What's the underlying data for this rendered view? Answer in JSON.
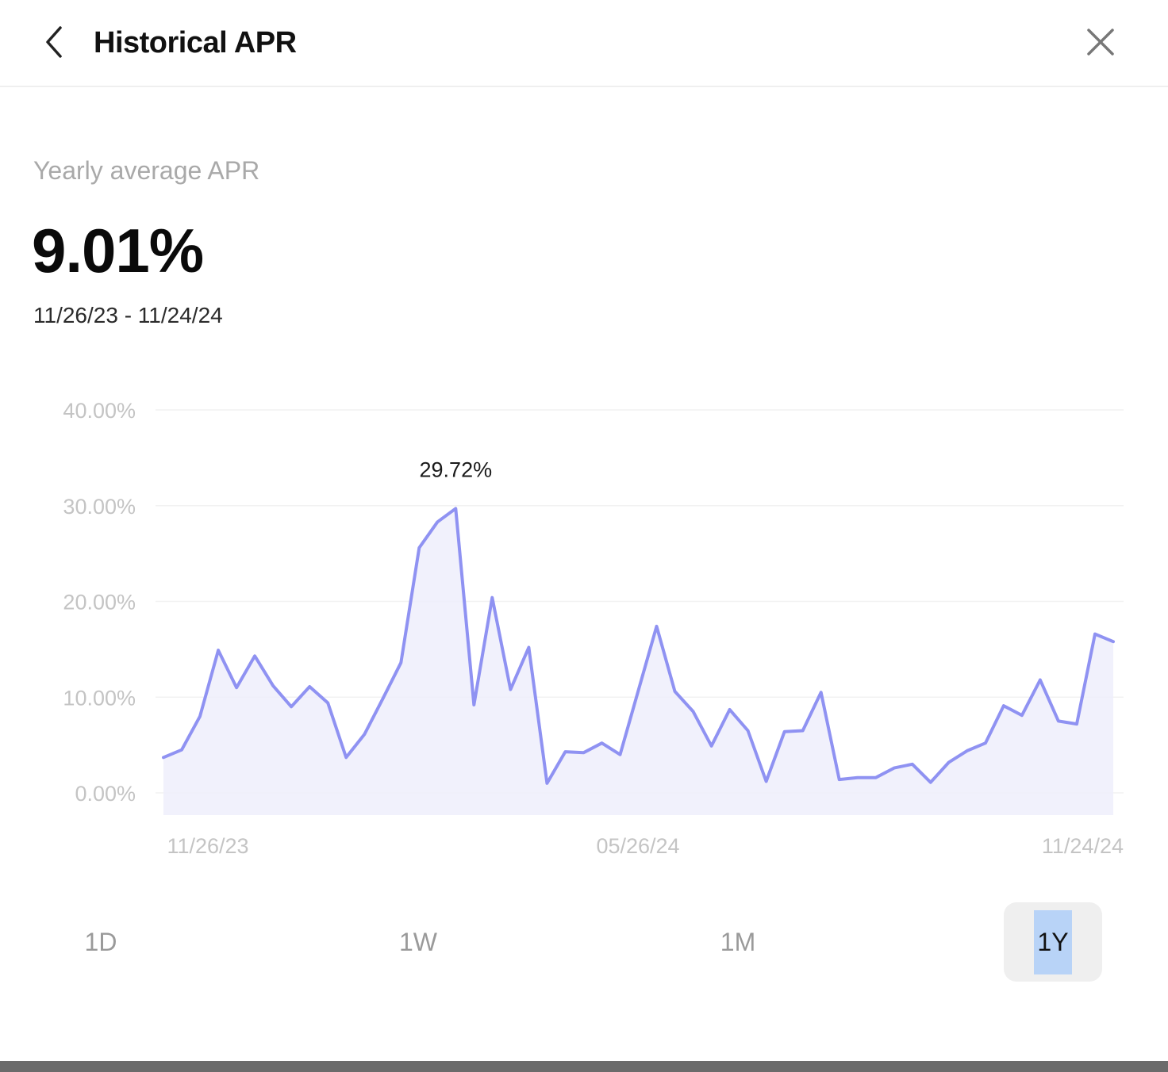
{
  "header": {
    "title": "Historical APR"
  },
  "summary": {
    "label": "Yearly average APR",
    "value": "9.01%",
    "range": "11/26/23 - 11/24/24"
  },
  "periods": [
    {
      "label": "1D",
      "active": false
    },
    {
      "label": "1W",
      "active": false
    },
    {
      "label": "1M",
      "active": false
    },
    {
      "label": "1Y",
      "active": true
    }
  ],
  "colors": {
    "line": "#8f92f2",
    "fill": "#eeeefc",
    "grid": "#f2f2f2",
    "tick_text": "#c4c4c4",
    "peak_label": "#1a1a1a"
  },
  "chart_data": {
    "type": "area",
    "ylim": [
      0,
      40
    ],
    "yticks": [
      "0.00%",
      "10.00%",
      "20.00%",
      "30.00%",
      "40.00%"
    ],
    "ytick_values": [
      0,
      10,
      20,
      30,
      40
    ],
    "xtick_labels": [
      "11/26/23",
      "05/26/24",
      "11/24/24"
    ],
    "grid": true,
    "annotation": {
      "text": "29.72%",
      "index": 16
    },
    "series": [
      {
        "values": [
          3.7,
          4.5,
          8.0,
          14.9,
          11.0,
          14.3,
          11.2,
          9.0,
          11.1,
          9.4,
          3.7,
          6.1,
          9.8,
          13.6,
          25.6,
          28.3,
          29.7,
          9.2,
          20.4,
          10.8,
          15.2,
          1.0,
          4.3,
          4.2,
          5.2,
          4.0,
          10.7,
          17.4,
          10.6,
          8.5,
          4.9,
          8.7,
          6.5,
          1.2,
          6.4,
          6.5,
          10.5,
          1.4,
          1.6,
          1.6,
          2.6,
          3.0,
          1.1,
          3.2,
          4.4,
          5.2,
          9.1,
          8.1,
          11.8,
          7.5,
          7.2,
          16.6,
          15.8
        ]
      }
    ]
  }
}
